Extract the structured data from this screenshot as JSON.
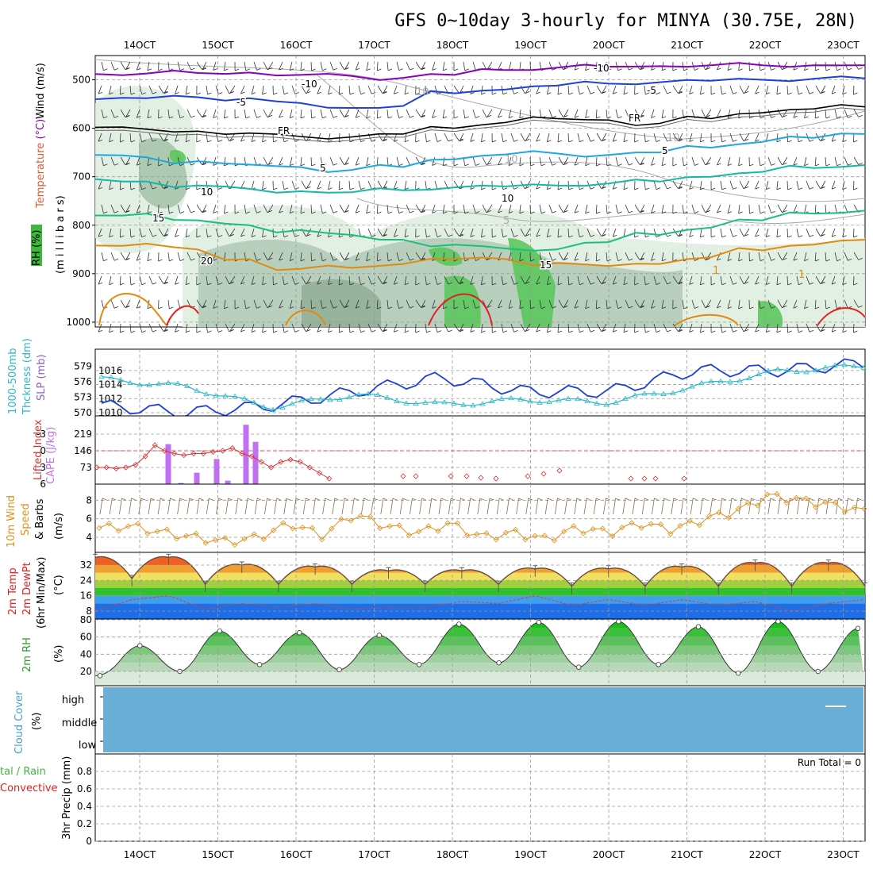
{
  "title": "GFS 0~10day 3-hourly for MINYA (30.75E, 28N)",
  "colors": {
    "purple": "#8a00b8",
    "blue": "#1f3fd8",
    "black": "#000000",
    "cyan": "#1ea7e0",
    "teal": "#14b8a8",
    "green": "#18c078",
    "orange": "#e08a10",
    "red": "#e02020",
    "slp": "#1f3fd8",
    "thickness": "#2cb8c8",
    "lifted_index": "#d83030",
    "cape": "#c070f0",
    "wind10m": "#e0901a",
    "cloud": "#6aaed6",
    "rh_fill": "#3cb83c"
  },
  "x_ticks": [
    "14OCT",
    "15OCT",
    "16OCT",
    "17OCT",
    "18OCT",
    "19OCT",
    "20OCT",
    "21OCT",
    "22OCT",
    "23OCT"
  ],
  "panel_labels": {
    "upper_rh": "RH (%)",
    "upper_temp": "Temperature (°C)",
    "upper_wind": "Wind (m/s)",
    "upper_units": "(m i l l i b a r s)",
    "thick_a": "1000-500mb",
    "thick_b": "Thckness (dm)",
    "slp": "SLP (mb)",
    "li": "Lifted Index",
    "cape": "CAPE (J/kg)",
    "wind_a": "10m Wind",
    "wind_b": "Speed",
    "wind_c": "& Barbs",
    "wind_units": "(m/s)",
    "temp_a": "2m Temp",
    "temp_b": "2m DewPt",
    "temp_c": "(6hr Min/Max)",
    "temp_units": "(°C)",
    "rh": "2m RH",
    "rh_units": "(%)",
    "cloud_a": "Cloud Cover",
    "cloud_units": "(%)",
    "precip_a": "tal / Rain",
    "precip_b": "Convective",
    "precip_units": "3hr Precip (mm)",
    "run_total": "Run Total = 0"
  },
  "contour_labels": {
    "minus10": "-10",
    "minus5": "-5",
    "fr": "FR",
    "plus5": "5",
    "plus10": "10",
    "plus15": "15",
    "plus20": "20",
    "one": "1",
    "gray10": "10",
    "gray5": "5"
  },
  "chart_data": [
    {
      "type": "contour",
      "panel": "upper_air",
      "ylabel": "(m i l l i b a r s)",
      "y_ticks": [
        "500",
        "600",
        "700",
        "800",
        "900",
        "1000"
      ],
      "isotherms": [
        {
          "label": "-10",
          "pressure_mb": [
            488,
            487,
            486,
            485,
            490,
            492,
            496,
            490,
            480,
            475,
            473,
            472,
            470,
            470,
            470,
            470
          ]
        },
        {
          "label": "-5",
          "pressure_mb": [
            540,
            538,
            536,
            538,
            548,
            558,
            554,
            528,
            520,
            512,
            508,
            505,
            502,
            500,
            498,
            497
          ]
        },
        {
          "label": "FR",
          "pressure_mb": [
            598,
            602,
            606,
            610,
            617,
            618,
            612,
            600,
            588,
            580,
            583,
            590,
            580,
            568,
            560,
            556
          ]
        },
        {
          "label": "5",
          "pressure_mb": [
            655,
            660,
            668,
            675,
            680,
            686,
            680,
            664,
            654,
            652,
            655,
            650,
            640,
            628,
            620,
            612
          ]
        },
        {
          "label": "10",
          "pressure_mb": [
            705,
            710,
            718,
            725,
            730,
            732,
            728,
            722,
            720,
            718,
            714,
            710,
            700,
            690,
            682,
            676
          ]
        },
        {
          "label": "15",
          "pressure_mb": [
            780,
            776,
            790,
            800,
            810,
            820,
            830,
            840,
            848,
            850,
            835,
            820,
            805,
            790,
            776,
            770
          ]
        },
        {
          "label": "20",
          "pressure_mb": [
            842,
            838,
            850,
            870,
            890,
            888,
            880,
            870,
            870,
            878,
            884,
            880,
            866,
            852,
            840,
            830
          ]
        }
      ]
    },
    {
      "type": "line",
      "panel": "slp_thickness",
      "x": [
        "14OCT",
        "15OCT",
        "16OCT",
        "17OCT",
        "18OCT",
        "19OCT",
        "20OCT",
        "21OCT",
        "22OCT",
        "23OCT"
      ],
      "series": [
        {
          "name": "SLP (mb)",
          "axis": "right",
          "values": [
            1011,
            1010,
            1011,
            1013,
            1015,
            1013,
            1013,
            1016,
            1016,
            1017
          ]
        },
        {
          "name": "1000-500mb Thckness (dm)",
          "axis": "left",
          "values": [
            576.5,
            575,
            571,
            573.5,
            571.5,
            572.5,
            572,
            575,
            578,
            579
          ]
        }
      ],
      "y_ticks_right": [
        1010,
        1012,
        1014,
        1016
      ],
      "y_ticks_left": [
        570,
        573,
        576,
        579
      ]
    },
    {
      "type": "bar",
      "panel": "cape_li",
      "categories": [
        "14OCT 12",
        "14OCT 18",
        "15OCT 00",
        "15OCT 12",
        "15OCT 18",
        "15OCT 21",
        "16OCT 00"
      ],
      "series": [
        {
          "name": "CAPE (J/kg)",
          "values": [
            175,
            5,
            50,
            110,
            15,
            260,
            185
          ]
        },
        {
          "name": "Lifted Index",
          "values": [
            3,
            1,
            0,
            0,
            1,
            -1,
            0
          ]
        }
      ],
      "y_ticks_left": [
        -3,
        0,
        3,
        6
      ],
      "y_ticks_right": [
        73,
        146,
        219
      ]
    },
    {
      "type": "line",
      "panel": "wind10m",
      "ylabel": "(m/s)",
      "y_ticks": [
        4,
        6,
        8
      ],
      "series": [
        {
          "name": "10m Wind Speed",
          "values": [
            5,
            5.2,
            4.5,
            4,
            3.5,
            4,
            5.5,
            4.2,
            6.5,
            5.2,
            4.5,
            5.5,
            4,
            4.5,
            3.8,
            5,
            4.5,
            5.5,
            4.8,
            6,
            6.8,
            8.5,
            8,
            7.5,
            6.8
          ]
        }
      ]
    },
    {
      "type": "area",
      "panel": "temp2m",
      "ylabel": "(°C)",
      "y_ticks": [
        8,
        16,
        24,
        32
      ],
      "series": [
        {
          "name": "2m Temp",
          "values": [
            36,
            25,
            36,
            22,
            32,
            22,
            31,
            22,
            29,
            22,
            29,
            22,
            30,
            21,
            30,
            21,
            31,
            21,
            33,
            21,
            33,
            21
          ]
        },
        {
          "name": "2m DewPt",
          "values": [
            8,
            14,
            16,
            9,
            12,
            10,
            12,
            9,
            10,
            10,
            13,
            12,
            16,
            11,
            14,
            11,
            14,
            11,
            13,
            8,
            12,
            14
          ]
        }
      ]
    },
    {
      "type": "area",
      "panel": "rh2m",
      "ylabel": "(%)",
      "y_ticks": [
        20,
        40,
        60,
        80
      ],
      "series": [
        {
          "name": "2m RH",
          "values": [
            15,
            50,
            20,
            67,
            28,
            65,
            22,
            62,
            28,
            75,
            30,
            77,
            25,
            78,
            28,
            72,
            18,
            78,
            20,
            70
          ]
        }
      ]
    },
    {
      "type": "heatmap",
      "panel": "cloud_cover",
      "rows": [
        "high",
        "middle",
        "low"
      ],
      "note": "full cover all period"
    },
    {
      "type": "bar",
      "panel": "precip",
      "ylabel": "3hr Precip (mm)",
      "y_ticks": [
        0,
        0.2,
        0.4,
        0.6,
        0.8
      ],
      "series": [
        {
          "name": "3hr Precip",
          "values": []
        }
      ],
      "ylim": [
        0,
        1
      ]
    }
  ]
}
